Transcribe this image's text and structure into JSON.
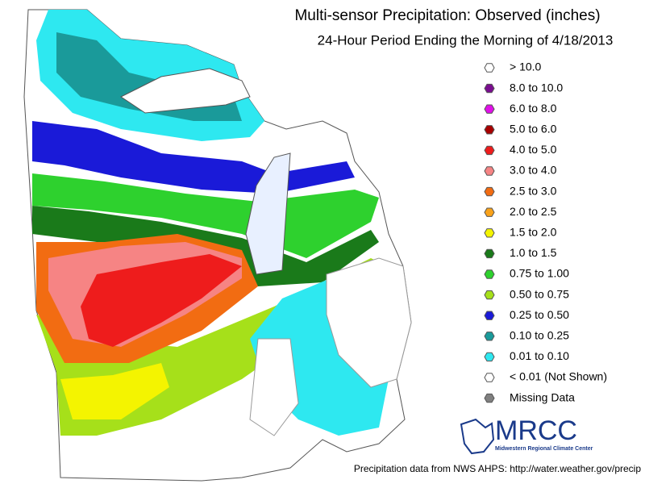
{
  "header": {
    "title": "Multi-sensor Precipitation:  Observed (inches)",
    "subtitle": "24-Hour Period Ending the Morning of 4/18/2013"
  },
  "legend": {
    "items": [
      {
        "label": "> 10.0",
        "color": "#ffffff"
      },
      {
        "label": "8.0 to 10.0",
        "color": "#7a0d8f"
      },
      {
        "label": "6.0 to 8.0",
        "color": "#e010e8"
      },
      {
        "label": "5.0 to 6.0",
        "color": "#a80000"
      },
      {
        "label": "4.0 to 5.0",
        "color": "#ee1c1c"
      },
      {
        "label": "3.0 to 4.0",
        "color": "#f68484"
      },
      {
        "label": "2.5 to 3.0",
        "color": "#f26c12"
      },
      {
        "label": "2.0 to 2.5",
        "color": "#f9a21a"
      },
      {
        "label": "1.5 to 2.0",
        "color": "#f4f400"
      },
      {
        "label": "1.0 to 1.5",
        "color": "#1a7a1a"
      },
      {
        "label": "0.75 to 1.00",
        "color": "#2ed12e"
      },
      {
        "label": "0.50 to 0.75",
        "color": "#a6e01a"
      },
      {
        "label": "0.25 to 0.50",
        "color": "#1a1ad8"
      },
      {
        "label": "0.10 to 0.25",
        "color": "#1a9a9a"
      },
      {
        "label": "0.01 to 0.10",
        "color": "#2ee8f0"
      },
      {
        "label": "< 0.01 (Not Shown)",
        "color": "#ffffff"
      },
      {
        "label": "Missing Data",
        "color": "#808080"
      }
    ]
  },
  "logo": {
    "name": "MRCC",
    "full_name": "Midwestern Regional Climate Center"
  },
  "footer": {
    "source": "Precipitation data from NWS AHPS:  http://water.weather.gov/precip"
  }
}
